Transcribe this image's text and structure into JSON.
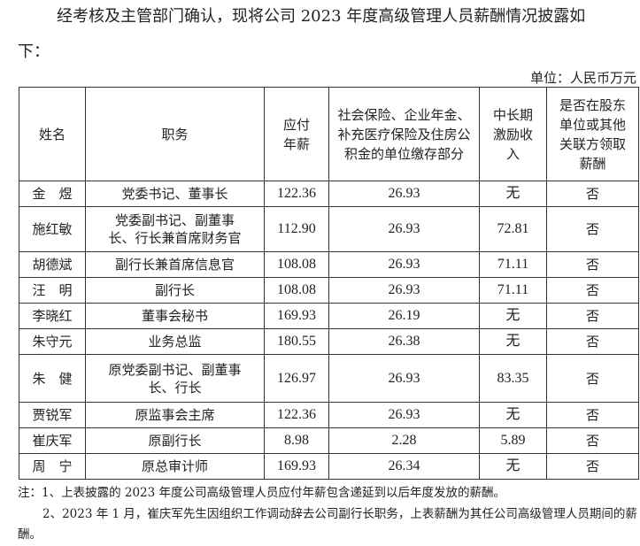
{
  "intro_line1": "经考核及主管部门确认，现将公司 2023 年度高级管理人员薪酬情况披露如",
  "intro_line2": "下：",
  "unit": "单位：人民币万元",
  "table": {
    "headers": [
      "姓名",
      "职务",
      "应付年薪",
      "社会保险、企业年金、补充医疗保险及住房公积金的单位缴存部分",
      "中长期激励收入",
      "是否在股东单位或其他关联方领取薪酬"
    ],
    "rows": [
      {
        "name": "金　煜",
        "position": "党委书记、董事长",
        "salary": "122.36",
        "insurance": "26.93",
        "incentive": "无",
        "related": "否"
      },
      {
        "name": "施红敏",
        "position": "党委副书记、副董事长、行长兼首席财务官",
        "salary": "112.90",
        "insurance": "26.93",
        "incentive": "72.81",
        "related": "否"
      },
      {
        "name": "胡德斌",
        "position": "副行长兼首席信息官",
        "salary": "108.08",
        "insurance": "26.93",
        "incentive": "71.11",
        "related": "否"
      },
      {
        "name": "汪　明",
        "position": "副行长",
        "salary": "108.08",
        "insurance": "26.93",
        "incentive": "71.11",
        "related": "否"
      },
      {
        "name": "李晓红",
        "position": "董事会秘书",
        "salary": "169.93",
        "insurance": "26.19",
        "incentive": "无",
        "related": "否"
      },
      {
        "name": "朱守元",
        "position": "业务总监",
        "salary": "180.55",
        "insurance": "26.38",
        "incentive": "无",
        "related": "否"
      },
      {
        "name": "朱　健",
        "position": "原党委副书记、副董事长、行长",
        "salary": "126.97",
        "insurance": "26.93",
        "incentive": "83.35",
        "related": "否"
      },
      {
        "name": "贾锐军",
        "position": "原监事会主席",
        "salary": "122.36",
        "insurance": "26.93",
        "incentive": "无",
        "related": "否"
      },
      {
        "name": "崔庆军",
        "position": "原副行长",
        "salary": "8.98",
        "insurance": "2.28",
        "incentive": "5.89",
        "related": "否"
      },
      {
        "name": "周　宁",
        "position": "原总审计师",
        "salary": "169.93",
        "insurance": "26.34",
        "incentive": "无",
        "related": "否"
      }
    ]
  },
  "notes": [
    "注：1、上表披露的 2023 年度公司高级管理人员应付年薪包含递延到以后年度发放的薪酬。",
    "2、2023 年 1 月，崔庆军先生因组织工作调动辞去公司副行长职务，上表薪酬为其任公司高级管理人员期间的薪酬。"
  ]
}
